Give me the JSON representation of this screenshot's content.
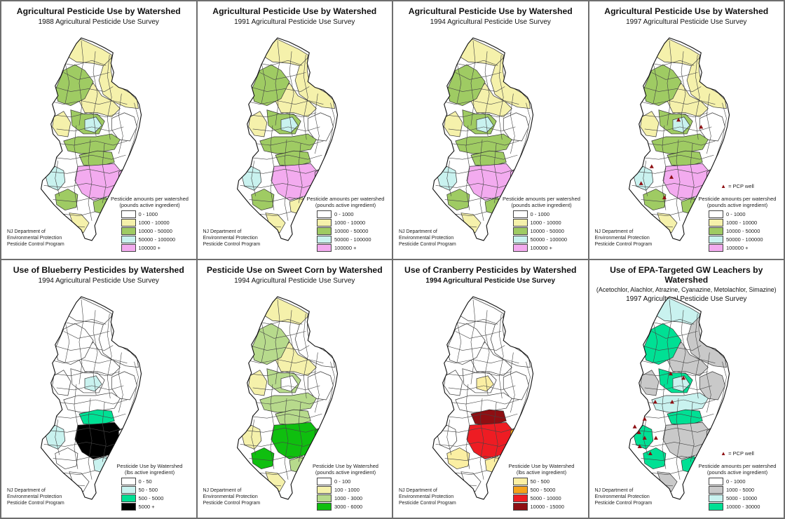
{
  "palette": {
    "white": "#FFFFFF",
    "yellow": "#F5F1AB",
    "green": "#9FCB63",
    "cyan": "#C9F2EF",
    "pink": "#F3ABEF",
    "spring": "#00E094",
    "black": "#000000",
    "cornlight": "#B7DA8C",
    "corngreen": "#0FBF0F",
    "cranyellow": "#FBEFA3",
    "orange": "#F5A31C",
    "red": "#EE1C23",
    "darkred": "#8E0E12",
    "gray": "#C9C9C9",
    "pcp_marker": "#8E0E12"
  },
  "attribution": {
    "lines": [
      "NJ Department of",
      "Environmental Protection",
      "Pesticide Control Program"
    ]
  },
  "pcp_legend_label": "= PCP well",
  "panels": [
    {
      "title": "Agricultural Pesticide Use by Watershed",
      "subtitle": "1988 Agricultural Pesticide Use Survey",
      "legend_title": "Pesticide amounts per watershed",
      "legend_subtitle": "(pounds active ingredient)",
      "legend": [
        {
          "label": "0 - 1000",
          "color_key": "white"
        },
        {
          "label": "1000 - 10000",
          "color_key": "yellow"
        },
        {
          "label": "10000 - 50000",
          "color_key": "green"
        },
        {
          "label": "50000 - 100000",
          "color_key": "cyan"
        },
        {
          "label": "100000 +",
          "color_key": "pink"
        }
      ],
      "pcp_wells": false,
      "regions": {
        "far_north": "yellow",
        "ne_block": "yellow",
        "north_mid": "yellow",
        "nw_ridge": "green",
        "west_mid": "yellow",
        "center_green": "green",
        "center_cyan": "cyan",
        "east_mid": "white",
        "mid_band": "green",
        "sw_blob": "cyan",
        "south_core_upper": "green",
        "south_core": "pink",
        "south_east_patch": "pink",
        "sw_green": "green",
        "south_scatter": "green",
        "cape": "yellow"
      }
    },
    {
      "title": "Agricultural Pesticide Use by Watershed",
      "subtitle": "1991 Agricultural Pesticide Use Survey",
      "legend_title": "Pesticide amounts per watershed",
      "legend_subtitle": "(pounds active ingredient)",
      "legend": [
        {
          "label": "0 - 1000",
          "color_key": "white"
        },
        {
          "label": "1000 - 10000",
          "color_key": "yellow"
        },
        {
          "label": "10000 - 50000",
          "color_key": "green"
        },
        {
          "label": "50000 - 100000",
          "color_key": "cyan"
        },
        {
          "label": "100000 +",
          "color_key": "pink"
        }
      ],
      "pcp_wells": false,
      "regions": {
        "far_north": "yellow",
        "ne_block": "yellow",
        "north_mid": "yellow",
        "nw_ridge": "green",
        "west_mid": "yellow",
        "center_green": "green",
        "center_cyan": "cyan",
        "east_mid": "white",
        "mid_band": "green",
        "sw_blob": "cyan",
        "south_core_upper": "green",
        "south_core": "pink",
        "south_east_patch": "pink",
        "sw_green": "green",
        "south_scatter": "yellow",
        "cape": "yellow"
      }
    },
    {
      "title": "Agricultural Pesticide Use by Watershed",
      "subtitle": "1994 Agricultural Pesticide Use Survey",
      "legend_title": "Pesticide amounts per watershed",
      "legend_subtitle": "(pounds active ingredient)",
      "legend": [
        {
          "label": "0 - 1000",
          "color_key": "white"
        },
        {
          "label": "1000 - 10000",
          "color_key": "yellow"
        },
        {
          "label": "10000 - 50000",
          "color_key": "green"
        },
        {
          "label": "50000 - 100000",
          "color_key": "cyan"
        },
        {
          "label": "100000 +",
          "color_key": "pink"
        }
      ],
      "pcp_wells": false,
      "regions": {
        "far_north": "yellow",
        "ne_block": "yellow",
        "north_mid": "yellow",
        "nw_ridge": "green",
        "west_mid": "yellow",
        "center_green": "green",
        "center_cyan": "cyan",
        "east_mid": "white",
        "mid_band": "green",
        "sw_blob": "cyan",
        "south_core_upper": "green",
        "south_core": "pink",
        "south_east_patch": "pink",
        "sw_green": "green",
        "south_scatter": "green",
        "cape": "yellow"
      }
    },
    {
      "title": "Agricultural Pesticide Use by Watershed",
      "subtitle": "1997 Agricultural Pesticide Use Survey",
      "legend_title": "Pesticide amounts per watershed",
      "legend_subtitle": "(pounds active ingredient)",
      "legend": [
        {
          "label": "0 - 1000",
          "color_key": "white"
        },
        {
          "label": "1000 - 10000",
          "color_key": "yellow"
        },
        {
          "label": "10000 - 50000",
          "color_key": "green"
        },
        {
          "label": "50000 - 100000",
          "color_key": "cyan"
        },
        {
          "label": "100000 +",
          "color_key": "pink"
        }
      ],
      "pcp_wells": true,
      "regions": {
        "far_north": "yellow",
        "ne_block": "yellow",
        "north_mid": "yellow",
        "nw_ridge": "green",
        "west_mid": "yellow",
        "center_green": "green",
        "center_cyan": "cyan",
        "east_mid": "white",
        "mid_band": "green",
        "sw_blob": "cyan",
        "south_core_upper": "green",
        "south_core": "pink",
        "south_east_patch": "pink",
        "sw_green": "green",
        "south_scatter": "green",
        "cape": "yellow"
      }
    },
    {
      "title": "Use of Blueberry Pesticides by Watershed",
      "subtitle": "1994 Agricultural Pesticide Use Survey",
      "legend_title": "Pesticide Use by Watershed",
      "legend_subtitle": "(lbs active ingredient)",
      "legend": [
        {
          "label": "0 - 50",
          "color_key": "white"
        },
        {
          "label": "50 - 500",
          "color_key": "cyan"
        },
        {
          "label": "500 - 5000",
          "color_key": "spring"
        },
        {
          "label": "5000 +",
          "color_key": "black"
        }
      ],
      "pcp_wells": false,
      "regions": {
        "far_north": "white",
        "ne_block": "white",
        "north_mid": "white",
        "nw_ridge": "white",
        "west_mid": "white",
        "center_green": "white",
        "center_cyan": "cyan",
        "east_mid": "white",
        "mid_band": "white",
        "sw_blob": "cyan",
        "south_core_upper": "spring",
        "south_core": "black",
        "south_east_patch": "white",
        "sw_green": "white",
        "south_scatter": "cyan",
        "cape": "white"
      }
    },
    {
      "title": "Pesticide Use on Sweet Corn by Watershed",
      "subtitle": "1994 Agricultural Pesticide Use Survey",
      "legend_title": "Pesticide Use by Watershed",
      "legend_subtitle": "(pounds active ingredient)",
      "legend": [
        {
          "label": "0 - 100",
          "color_key": "white"
        },
        {
          "label": "100 - 1000",
          "color_key": "yellow"
        },
        {
          "label": "1000 - 3000",
          "color_key": "cornlight"
        },
        {
          "label": "3000 - 6000",
          "color_key": "corngreen"
        }
      ],
      "pcp_wells": false,
      "regions": {
        "far_north": "yellow",
        "ne_block": "white",
        "north_mid": "yellow",
        "nw_ridge": "cornlight",
        "west_mid": "yellow",
        "center_green": "cornlight",
        "center_cyan": "white",
        "east_mid": "white",
        "mid_band": "cornlight",
        "sw_blob": "yellow",
        "south_core_upper": "cornlight",
        "south_core": "corngreen",
        "south_east_patch": "corngreen",
        "sw_green": "corngreen",
        "south_scatter": "cornlight",
        "cape": "yellow"
      }
    },
    {
      "title": "Use of Cranberry Pesticides by Watershed",
      "subtitle": "1994 Agricultural Pesticide Use Survey",
      "subtitle_bold": true,
      "legend_title": "Pesticide Use by Watershed",
      "legend_subtitle": "(lbs active ingredient)",
      "legend": [
        {
          "label": "50 - 500",
          "color_key": "cranyellow"
        },
        {
          "label": "500 - 5000",
          "color_key": "orange"
        },
        {
          "label": "5000 - 10000",
          "color_key": "red"
        },
        {
          "label": "10000 - 15000",
          "color_key": "darkred"
        }
      ],
      "pcp_wells": false,
      "regions": {
        "far_north": "white",
        "ne_block": "white",
        "north_mid": "white",
        "nw_ridge": "white",
        "west_mid": "white",
        "center_green": "white",
        "center_cyan": "cranyellow",
        "east_mid": "white",
        "mid_band": "white",
        "sw_blob": "white",
        "south_core_upper": "darkred",
        "south_core": "red",
        "south_east_patch": "orange",
        "sw_green": "cranyellow",
        "south_scatter": "cranyellow",
        "cape": "white"
      }
    },
    {
      "title": "Use of EPA-Targeted GW Leachers by Watershed",
      "chem_line": "(Acetochlor, Alachlor, Atrazine, Cyanazine, Metolachlor, Simazine)",
      "subtitle": "1997 Agricultural Pesticide Use Survey",
      "legend_title": "Pesticide amounts per watershed",
      "legend_subtitle": "(pounds active ingredient)",
      "legend": [
        {
          "label": "0 - 1000",
          "color_key": "white"
        },
        {
          "label": "1000 - 5000",
          "color_key": "gray"
        },
        {
          "label": "5000 - 10000",
          "color_key": "cyan"
        },
        {
          "label": "10000 - 30000",
          "color_key": "spring"
        }
      ],
      "pcp_wells": true,
      "regions": {
        "far_north": "cyan",
        "ne_block": "gray",
        "north_mid": "gray",
        "nw_ridge": "spring",
        "west_mid": "gray",
        "center_green": "spring",
        "center_cyan": "cyan",
        "east_mid": "gray",
        "mid_band": "cyan",
        "sw_blob": "spring",
        "south_core_upper": "spring",
        "south_core": "gray",
        "south_east_patch": "gray",
        "sw_green": "spring",
        "south_scatter": "spring",
        "cape": "gray"
      }
    }
  ]
}
